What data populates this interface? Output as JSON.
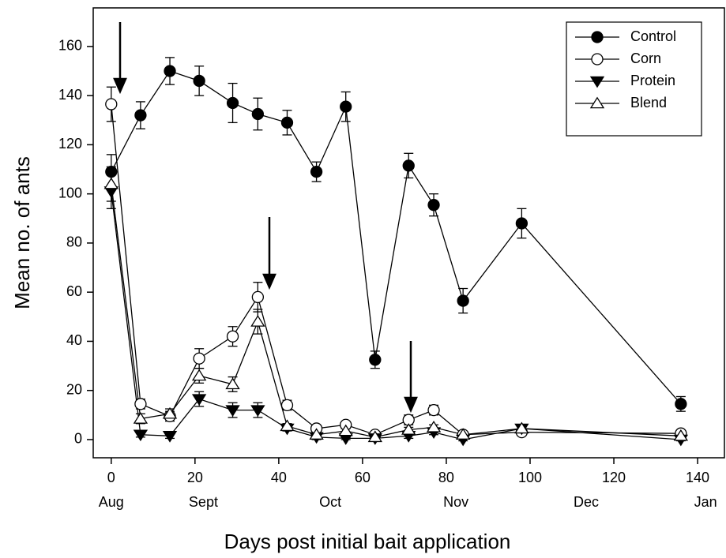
{
  "chart_data": {
    "type": "line",
    "x_label": "Days post initial bait application",
    "y_label": "Mean no. of ants",
    "x": [
      0,
      7,
      14,
      21,
      29,
      35,
      42,
      49,
      56,
      63,
      71,
      77,
      84,
      98,
      136
    ],
    "series": [
      {
        "name": "Control",
        "color": "#000000",
        "marker": "circle",
        "filled": true,
        "values": [
          109,
          132,
          150,
          146,
          137,
          132.5,
          129,
          109,
          135.5,
          32.5,
          111.5,
          95.5,
          56.5,
          88,
          14.5
        ],
        "errors": [
          7,
          5.5,
          5.5,
          6,
          8,
          6.5,
          5,
          4,
          6,
          3.5,
          5,
          4.5,
          5,
          6,
          3
        ]
      },
      {
        "name": "Corn",
        "color": "#000000",
        "marker": "circle",
        "filled": false,
        "values": [
          136.5,
          14.5,
          9.5,
          33,
          42,
          58,
          14,
          4.5,
          6,
          2,
          8,
          12,
          2,
          3,
          2.5
        ],
        "errors": [
          7,
          2,
          2,
          4,
          4,
          6,
          2,
          1,
          1,
          1,
          2,
          2,
          1,
          1,
          1
        ]
      },
      {
        "name": "Protein",
        "color": "#000000",
        "marker": "triangle-down",
        "filled": true,
        "values": [
          101,
          2,
          1.5,
          16.5,
          12,
          12,
          4.5,
          1,
          0.5,
          0.5,
          1.5,
          3,
          0,
          4.5,
          0
        ],
        "errors": [
          7,
          1,
          1,
          3,
          3,
          3,
          1,
          1,
          0.5,
          0.5,
          1,
          1,
          0.5,
          1,
          0.5
        ]
      },
      {
        "name": "Blend",
        "color": "#000000",
        "marker": "triangle-up",
        "filled": false,
        "values": [
          104,
          8.5,
          10.5,
          26,
          22.5,
          48,
          5.5,
          2,
          3.5,
          1,
          4,
          5,
          2,
          4.5,
          1.5
        ],
        "errors": [
          7,
          2,
          2,
          3,
          3,
          5,
          1,
          1,
          1,
          0.5,
          1,
          1,
          0.5,
          1,
          0.5
        ]
      }
    ],
    "xlim": [
      -4.3,
      146.4
    ],
    "xticks": [
      0,
      20,
      40,
      60,
      80,
      100,
      120,
      140
    ],
    "ylim": [
      -7.4,
      175.7
    ],
    "yticks": [
      0,
      20,
      40,
      60,
      80,
      100,
      120,
      140,
      160
    ],
    "month_ticks": [
      {
        "value": 0,
        "label": "Aug"
      },
      {
        "value": 22,
        "label": "Sept"
      },
      {
        "value": 52.3,
        "label": "Oct"
      },
      {
        "value": 82.3,
        "label": "Nov"
      },
      {
        "value": 113.4,
        "label": "Dec"
      },
      {
        "value": 141.9,
        "label": "Jan"
      }
    ],
    "legend": "top-right",
    "grid": false
  }
}
